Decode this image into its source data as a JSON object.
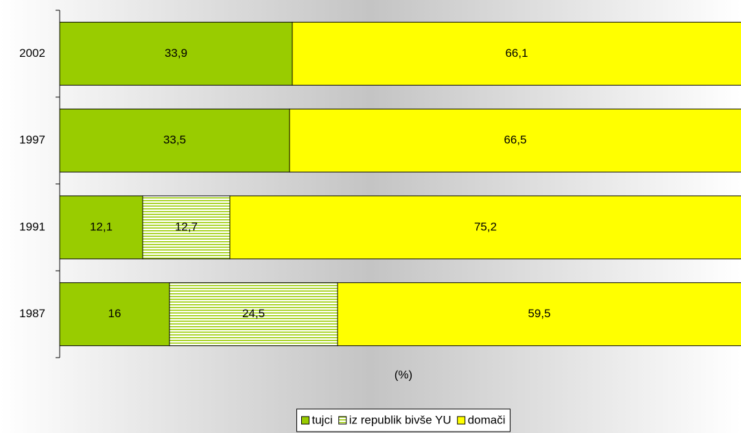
{
  "chart_data": {
    "type": "stacked_bar_horizontal",
    "categories": [
      "2002",
      "1997",
      "1991",
      "1987"
    ],
    "series": [
      {
        "name": "tujci",
        "color": "#99cc00",
        "values": [
          33.9,
          33.5,
          12.1,
          16
        ],
        "value_labels": [
          "33,9",
          "33,5",
          "12,1",
          "16"
        ]
      },
      {
        "name": "iz republik bivše YU",
        "color": "#99cc00",
        "pattern": "horizontal-stripes",
        "values": [
          null,
          null,
          12.7,
          24.5
        ],
        "value_labels": [
          null,
          null,
          "12,7",
          "24,5"
        ]
      },
      {
        "name": "domači",
        "color": "#ffff00",
        "values": [
          66.1,
          66.5,
          75.2,
          59.5
        ],
        "value_labels": [
          "66,1",
          "66,5",
          "75,2",
          "59,5"
        ]
      }
    ],
    "xlabel": "(%)",
    "xlim": [
      0,
      100
    ]
  }
}
